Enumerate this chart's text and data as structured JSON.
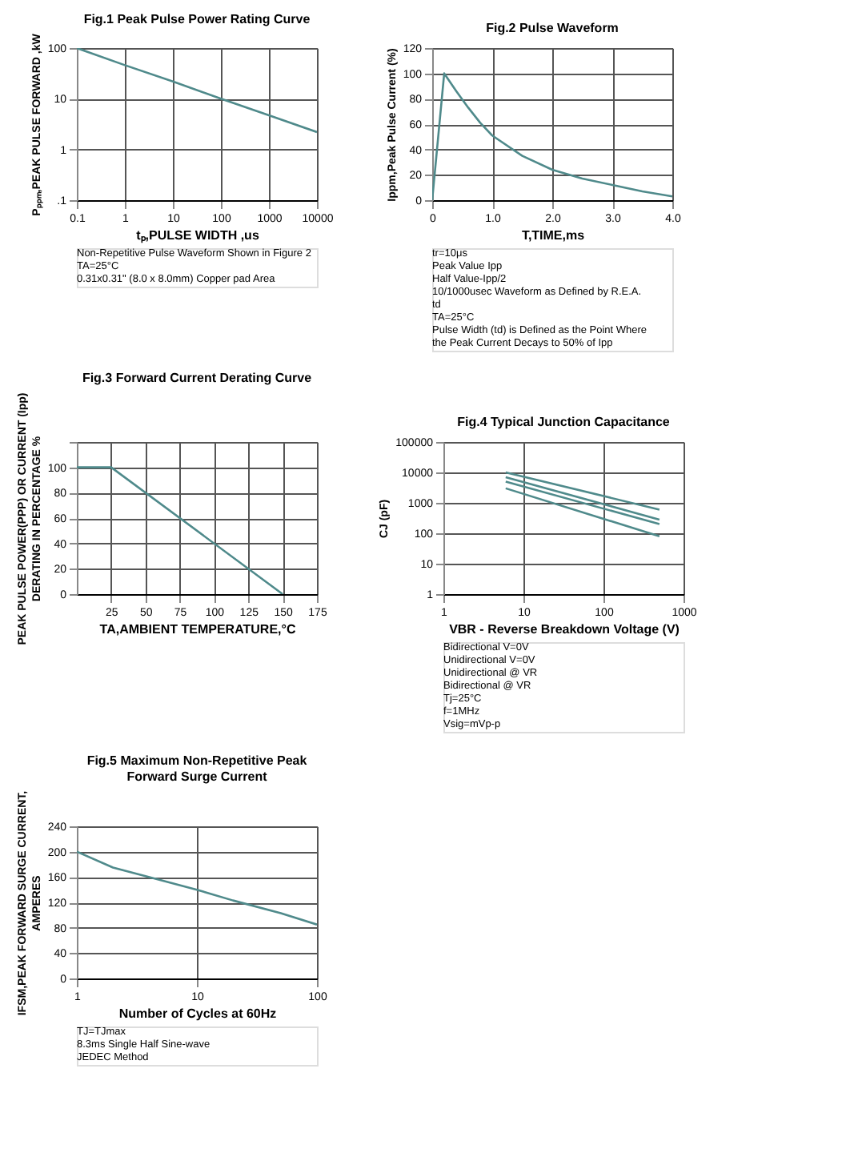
{
  "chart_data": [
    {
      "type": "line",
      "title": "Fig.1  Peak Pulse Power Rating Curve",
      "xlabel": "tₚ,PULSE WIDTH ,us",
      "ylabel": "Pₚₚₘ,PEAK PULSE FORWARD ,kW",
      "log": "xy",
      "grid": true,
      "xlim": [
        0.1,
        10000
      ],
      "xticks": [
        0.1,
        1,
        10,
        100,
        1000,
        10000
      ],
      "ylim": [
        0.1,
        100
      ],
      "yticks": [
        {
          "value": 0.1,
          "label": ".1"
        },
        1,
        10,
        100
      ],
      "series": [
        {
          "color": "#4f8a8b",
          "x": [
            0.1,
            1,
            10,
            100,
            1000,
            10000
          ],
          "values": [
            100,
            46,
            22,
            10,
            4.7,
            2.2
          ]
        }
      ],
      "annotations": [
        "Non-Repetitive Pulse Waveform Shown in Figure 2",
        "TA=25°C",
        "0.31x0.31\" (8.0 x 8.0mm) Copper pad Area"
      ]
    },
    {
      "type": "line",
      "title": "Fig.2  Pulse Waveform",
      "xlabel": "T,TIME,ms",
      "ylabel": "Ippm,Peak Pulse Current (%)",
      "grid": true,
      "xlim": [
        0,
        4
      ],
      "xticks": [
        0,
        {
          "value": 1,
          "label": "1.0"
        },
        {
          "value": 2,
          "label": "2.0"
        },
        {
          "value": 3,
          "label": "3.0"
        },
        {
          "value": 4,
          "label": "4.0"
        }
      ],
      "ylim": [
        0,
        120
      ],
      "yticks": [
        0,
        20,
        40,
        60,
        80,
        100,
        120
      ],
      "series": [
        {
          "color": "#4f8a8b",
          "x": [
            0,
            0.2,
            0.4,
            0.6,
            0.8,
            1.0,
            1.5,
            2.0,
            2.5,
            3.0,
            3.5,
            4.0
          ],
          "values": [
            0,
            100,
            86,
            73,
            61,
            51,
            35,
            24,
            17,
            12,
            7,
            3
          ]
        }
      ],
      "annotations": [
        "tr=10μs",
        "Peak Value Ipp",
        "Half Value-Ipp/2",
        "10/1000usec Waveform as Defined by R.E.A.",
        "td",
        "TA=25°C",
        "Pulse Width (td) is Defined as the Point Where the Peak Current Decays to 50% of Ipp"
      ]
    },
    {
      "type": "line",
      "title": "Fig.3  Forward Current Derating Curve",
      "xlabel": "TA,AMBIENT TEMPERATURE,°C",
      "ylabel": "PEAK PULSE POWER(PPP) OR CURRENT (Ipp)\nDERATING IN PERCENTAGE %",
      "grid": true,
      "xlim": [
        0,
        175
      ],
      "xticks": [
        25,
        50,
        75,
        100,
        125,
        150,
        175
      ],
      "ylim": [
        0,
        120
      ],
      "yticks": [
        0,
        20,
        40,
        60,
        80,
        100,
        {
          "value": 120,
          "label": null
        }
      ],
      "series": [
        {
          "color": "#4f8a8b",
          "x": [
            0,
            25,
            150
          ],
          "values": [
            100,
            100,
            0
          ]
        }
      ]
    },
    {
      "type": "line",
      "title": "Fig.4  Typical Junction Capacitance",
      "xlabel": "VBR - Reverse Breakdown Voltage (V)",
      "ylabel": "CJ (pF)",
      "log": "xy",
      "grid": true,
      "xlim": [
        1,
        1000
      ],
      "xticks": [
        1,
        10,
        100,
        1000
      ],
      "ylim": [
        1,
        100000
      ],
      "yticks": [
        1,
        10,
        100,
        1000,
        10000,
        100000
      ],
      "series": [
        {
          "color": "#4f8a8b",
          "x": [
            6,
            500
          ],
          "values": [
            10000,
            600
          ]
        },
        {
          "color": "#4f8a8b",
          "x": [
            6,
            500
          ],
          "values": [
            7000,
            280
          ]
        },
        {
          "color": "#4f8a8b",
          "x": [
            6,
            500
          ],
          "values": [
            5000,
            200
          ]
        },
        {
          "color": "#4f8a8b",
          "x": [
            6,
            500
          ],
          "values": [
            3000,
            80
          ]
        }
      ],
      "annotations": [
        "Bidirectional V=0V",
        "Unidirectional V=0V",
        "Unidirectional @ VR",
        "Bidirectional @ VR",
        "Tj=25°C",
        "f=1MHz",
        "Vsig=mVp-p"
      ]
    },
    {
      "type": "line",
      "title": "Fig.5  Maximum Non-Repetitive Peak\nForward Surge Current",
      "xlabel": "Number of Cycles at 60Hz",
      "ylabel": "IFSM,PEAK FORWARD SURGE CURRENT,\nAMPERES",
      "log": "x",
      "grid": true,
      "xlim": [
        1,
        100
      ],
      "xticks": [
        1,
        10,
        100
      ],
      "ylim": [
        0,
        240
      ],
      "yticks": [
        0,
        40,
        80,
        120,
        160,
        200,
        240
      ],
      "series": [
        {
          "color": "#4f8a8b",
          "x": [
            1,
            2,
            5,
            10,
            20,
            50,
            100
          ],
          "values": [
            200,
            175,
            155,
            140,
            123,
            103,
            85
          ]
        }
      ],
      "annotations": [
        "TJ=TJmax",
        "8.3ms Single Half Sine-wave",
        "JEDEC Method"
      ]
    }
  ]
}
